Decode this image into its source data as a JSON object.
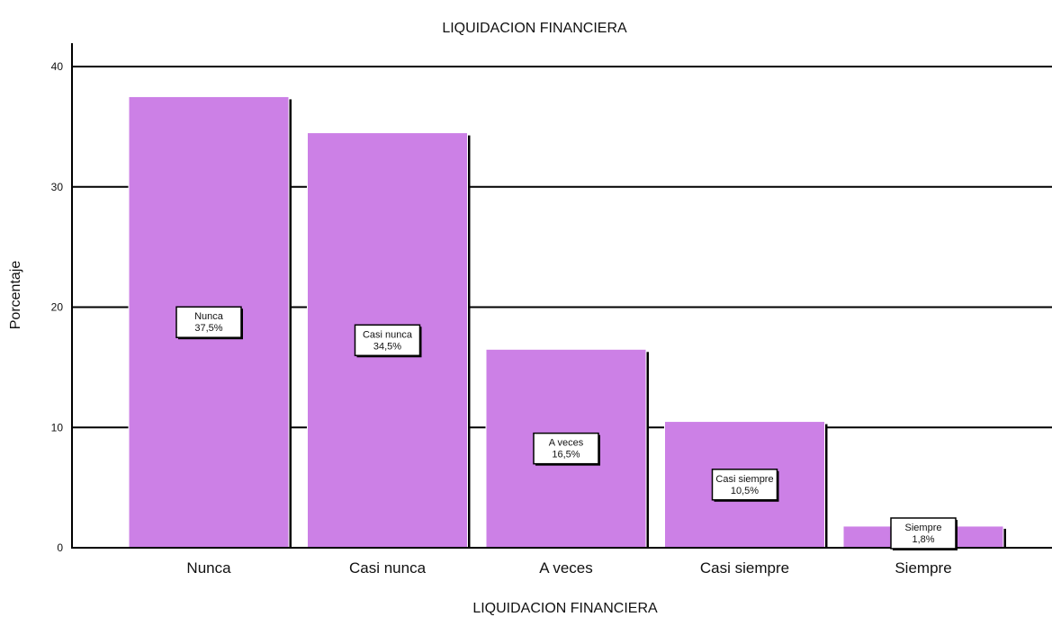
{
  "chart_data": {
    "type": "bar",
    "title": "LIQUIDACION FINANCIERA",
    "xlabel": "LIQUIDACION FINANCIERA",
    "ylabel": "Porcentaje",
    "categories": [
      "Nunca",
      "Casi nunca",
      "A veces",
      "Casi siempre",
      "Siempre"
    ],
    "values": [
      37.5,
      34.5,
      16.5,
      10.5,
      1.8
    ],
    "data_labels": [
      [
        "Nunca",
        "37,5%"
      ],
      [
        "Casi nunca",
        "34,5%"
      ],
      [
        "A veces",
        "16,5%"
      ],
      [
        "Casi siempre",
        "10,5%"
      ],
      [
        "Siempre",
        "1,8%"
      ]
    ],
    "ylim": [
      0,
      40
    ],
    "yticks": [
      0,
      10,
      20,
      30,
      40
    ],
    "grid": true,
    "bar_color": "#cc80e6",
    "grid_color": "#000000"
  }
}
